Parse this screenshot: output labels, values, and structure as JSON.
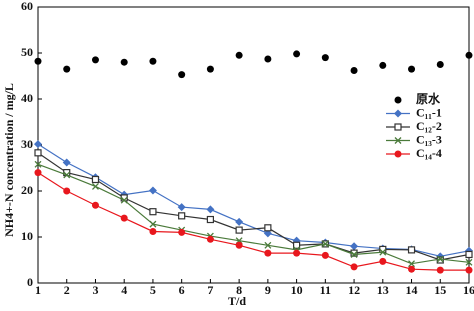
{
  "chart_data": {
    "type": "line",
    "x_label": "T/d",
    "y_label": "NH4+-N concentration / mg/L",
    "x": [
      1,
      2,
      3,
      4,
      5,
      6,
      7,
      8,
      9,
      10,
      11,
      12,
      13,
      14,
      15,
      16
    ],
    "xlim": [
      1,
      16
    ],
    "xticks": [
      1,
      2,
      3,
      4,
      5,
      6,
      7,
      8,
      9,
      10,
      11,
      12,
      13,
      14,
      15,
      16
    ],
    "ylim": [
      0,
      60
    ],
    "yticks": [
      0,
      10,
      20,
      30,
      40,
      50,
      60
    ],
    "legend": "right",
    "series": [
      {
        "name": "原水",
        "color": "#000000",
        "marker": "circle",
        "line": false,
        "values": [
          48.2,
          46.5,
          48.5,
          48,
          48.2,
          45.3,
          46.5,
          49.5,
          48.7,
          49.8,
          49,
          46.2,
          47.3,
          46.5,
          47.5,
          49.5
        ]
      },
      {
        "name": "C₁₁-1",
        "color": "#4472c4",
        "marker": "diamond",
        "line": true,
        "values": [
          30.2,
          26.2,
          23,
          19.2,
          20.1,
          16.5,
          16,
          13.3,
          10.8,
          9.2,
          8.8,
          8,
          7.5,
          7.3,
          5.8,
          7
        ]
      },
      {
        "name": "C₁₂-2",
        "color": "#333333",
        "marker": "square",
        "line": true,
        "values": [
          28.3,
          24,
          22.5,
          18.5,
          15.5,
          14.6,
          13.8,
          11.5,
          12,
          8.2,
          8.5,
          6.5,
          7.3,
          7.2,
          5,
          6.2
        ]
      },
      {
        "name": "C₁₃-3",
        "color": "#4a7a3a",
        "marker": "x",
        "line": true,
        "values": [
          25.8,
          23.5,
          21,
          18,
          12.8,
          11.5,
          10.2,
          9.2,
          8.2,
          7.2,
          8.5,
          6.2,
          6.7,
          4.2,
          5.2,
          4.5
        ]
      },
      {
        "name": "C₁₄-4",
        "color": "#e8171d",
        "marker": "circle",
        "line": true,
        "values": [
          24,
          20,
          16.9,
          14.1,
          11.2,
          11,
          9.5,
          8.2,
          6.5,
          6.5,
          6,
          3.5,
          4.7,
          3,
          2.8,
          2.8
        ]
      }
    ]
  }
}
